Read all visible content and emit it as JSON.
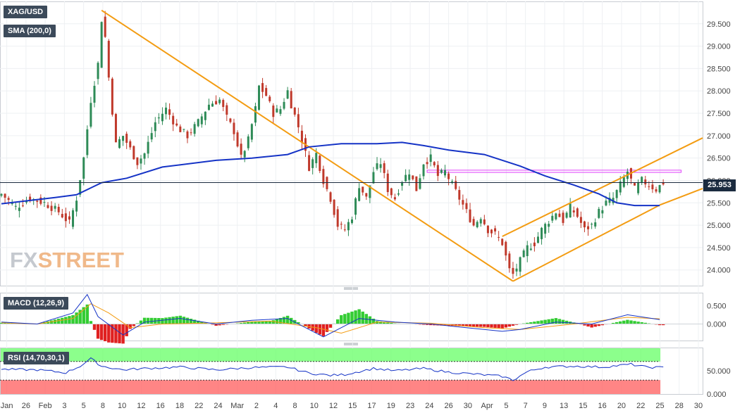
{
  "labels": {
    "symbol": "XAG/USD",
    "sma": "SMA (200,0)",
    "macd": "MACD (12,26,9)",
    "rsi": "RSI (14,70,30,1)",
    "last_price": "25.953"
  },
  "watermark": {
    "part1": "FX",
    "part2": "STREET"
  },
  "colors": {
    "up": "#2e8b57",
    "down": "#c0392b",
    "sma": "#1533c6",
    "trendline": "#f39c12",
    "resistance_zone": "#e040fb",
    "macd_line": "#1533c6",
    "signal_line": "#f39c12",
    "hist_pos": "#33cc33",
    "hist_neg": "#e02020",
    "rsi_overbought": "#66ff66",
    "rsi_oversold": "#ff6666",
    "price_box": "#1b2b3f"
  },
  "chart_data": {
    "type": "candlestick",
    "instrument": "XAG/USD",
    "price_axis": {
      "min": 23.65,
      "max": 30.0,
      "ticks": [
        "24.000",
        "24.500",
        "25.000",
        "25.500",
        "26.000",
        "26.500",
        "27.000",
        "27.500",
        "28.000",
        "28.500",
        "29.000",
        "29.500"
      ]
    },
    "x_ticks": [
      "Jan",
      "26",
      "Feb",
      "3",
      "5",
      "8",
      "10",
      "12",
      "16",
      "18",
      "22",
      "24",
      "Mar",
      "2",
      "4",
      "8",
      "10",
      "12",
      "15",
      "17",
      "19",
      "23",
      "24",
      "26",
      "30",
      "Apr",
      "5",
      "7",
      "9",
      "13",
      "15",
      "16",
      "20",
      "22",
      "25",
      "28",
      "30"
    ],
    "last_price": 25.953,
    "close_path": [
      [
        0,
        25.7
      ],
      [
        4,
        25.4
      ],
      [
        8,
        25.6
      ],
      [
        12,
        25.5
      ],
      [
        16,
        25.3
      ],
      [
        19,
        25.05
      ],
      [
        21,
        25.6
      ],
      [
        23,
        26.5
      ],
      [
        25,
        27.8
      ],
      [
        27,
        28.6
      ],
      [
        28,
        29.6
      ],
      [
        29,
        29.2
      ],
      [
        30,
        28.3
      ],
      [
        32,
        26.8
      ],
      [
        34,
        27.0
      ],
      [
        36,
        26.7
      ],
      [
        38,
        26.4
      ],
      [
        40,
        26.6
      ],
      [
        43,
        27.3
      ],
      [
        46,
        27.6
      ],
      [
        49,
        27.2
      ],
      [
        52,
        27.0
      ],
      [
        55,
        27.3
      ],
      [
        58,
        27.7
      ],
      [
        61,
        27.8
      ],
      [
        63,
        27.4
      ],
      [
        65,
        27.1
      ],
      [
        67,
        26.5
      ],
      [
        69,
        26.9
      ],
      [
        71,
        27.6
      ],
      [
        72,
        28.1
      ],
      [
        74,
        27.9
      ],
      [
        76,
        27.5
      ],
      [
        78,
        27.6
      ],
      [
        80,
        28.0
      ],
      [
        81,
        27.7
      ],
      [
        83,
        27.2
      ],
      [
        84,
        26.9
      ],
      [
        86,
        26.3
      ],
      [
        88,
        26.6
      ],
      [
        90,
        26.0
      ],
      [
        92,
        25.6
      ],
      [
        94,
        25.0
      ],
      [
        96,
        24.9
      ],
      [
        98,
        25.2
      ],
      [
        100,
        25.9
      ],
      [
        102,
        25.6
      ],
      [
        104,
        26.2
      ],
      [
        106,
        26.4
      ],
      [
        108,
        25.8
      ],
      [
        110,
        25.6
      ],
      [
        112,
        26.0
      ],
      [
        114,
        26.2
      ],
      [
        116,
        25.8
      ],
      [
        118,
        26.4
      ],
      [
        120,
        26.5
      ],
      [
        122,
        26.1
      ],
      [
        124,
        26.2
      ],
      [
        126,
        25.9
      ],
      [
        128,
        25.6
      ],
      [
        130,
        25.3
      ],
      [
        132,
        25.0
      ],
      [
        134,
        25.2
      ],
      [
        136,
        24.9
      ],
      [
        138,
        24.8
      ],
      [
        140,
        24.6
      ],
      [
        142,
        24.0
      ],
      [
        143,
        23.9
      ],
      [
        145,
        24.2
      ],
      [
        147,
        24.5
      ],
      [
        149,
        24.6
      ],
      [
        151,
        24.9
      ],
      [
        153,
        25.1
      ],
      [
        155,
        25.3
      ],
      [
        157,
        25.1
      ],
      [
        159,
        25.4
      ],
      [
        161,
        25.2
      ],
      [
        163,
        24.9
      ],
      [
        165,
        25.0
      ],
      [
        167,
        25.3
      ],
      [
        169,
        25.5
      ],
      [
        171,
        25.6
      ],
      [
        173,
        25.9
      ],
      [
        175,
        26.2
      ],
      [
        177,
        25.8
      ],
      [
        179,
        26.0
      ],
      [
        181,
        25.9
      ],
      [
        183,
        25.8
      ],
      [
        185,
        25.953
      ]
    ],
    "sma_200": [
      [
        0,
        25.48
      ],
      [
        15,
        25.62
      ],
      [
        21,
        25.68
      ],
      [
        28,
        25.95
      ],
      [
        35,
        26.05
      ],
      [
        45,
        26.3
      ],
      [
        60,
        26.45
      ],
      [
        70,
        26.5
      ],
      [
        80,
        26.58
      ],
      [
        86,
        26.75
      ],
      [
        95,
        26.82
      ],
      [
        105,
        26.82
      ],
      [
        112,
        26.85
      ],
      [
        118,
        26.78
      ],
      [
        125,
        26.68
      ],
      [
        135,
        26.58
      ],
      [
        145,
        26.32
      ],
      [
        152,
        26.1
      ],
      [
        160,
        25.9
      ],
      [
        167,
        25.7
      ],
      [
        172,
        25.5
      ],
      [
        177,
        25.44
      ],
      [
        184,
        25.44
      ]
    ],
    "trendlines": [
      {
        "from": [
          28,
          29.8
        ],
        "to": [
          143,
          23.75
        ]
      },
      {
        "from": [
          143,
          23.75
        ],
        "to": [
          184,
          25.45
        ]
      },
      {
        "from": [
          184,
          25.45
        ],
        "to": [
          196,
          25.82
        ]
      },
      {
        "from": [
          140,
          24.75
        ],
        "to": [
          196,
          26.95
        ]
      }
    ],
    "resistance_zone": {
      "x_start": 119,
      "x_end": 190,
      "y_low": 26.18,
      "y_high": 26.23
    },
    "macd": {
      "axis": {
        "min": -0.45,
        "max": 0.85,
        "ticks": [
          "0.500",
          "0.000"
        ]
      },
      "macd_line": [
        [
          0,
          0.05
        ],
        [
          10,
          0.0
        ],
        [
          20,
          0.3
        ],
        [
          24,
          0.8
        ],
        [
          27,
          0.2
        ],
        [
          34,
          -0.3
        ],
        [
          40,
          0.05
        ],
        [
          50,
          0.15
        ],
        [
          60,
          0.0
        ],
        [
          70,
          0.1
        ],
        [
          80,
          0.15
        ],
        [
          90,
          -0.35
        ],
        [
          100,
          0.15
        ],
        [
          110,
          0.05
        ],
        [
          120,
          0.0
        ],
        [
          130,
          -0.1
        ],
        [
          140,
          -0.2
        ],
        [
          145,
          -0.15
        ],
        [
          155,
          0.05
        ],
        [
          165,
          0.0
        ],
        [
          175,
          0.25
        ],
        [
          184,
          0.12
        ]
      ],
      "signal_line": [
        [
          0,
          0.03
        ],
        [
          10,
          0.0
        ],
        [
          20,
          0.15
        ],
        [
          25,
          0.55
        ],
        [
          30,
          0.3
        ],
        [
          36,
          -0.1
        ],
        [
          45,
          0.0
        ],
        [
          60,
          0.03
        ],
        [
          75,
          0.08
        ],
        [
          88,
          -0.1
        ],
        [
          95,
          -0.25
        ],
        [
          105,
          0.05
        ],
        [
          120,
          0.02
        ],
        [
          135,
          -0.1
        ],
        [
          145,
          -0.15
        ],
        [
          160,
          0.0
        ],
        [
          175,
          0.18
        ],
        [
          184,
          0.14
        ]
      ]
    },
    "rsi": {
      "axis": {
        "min": 0,
        "max": 100,
        "ticks": [
          "50.000",
          "0.000"
        ]
      },
      "overbought": 70,
      "oversold": 30,
      "values": [
        [
          0,
          53
        ],
        [
          10,
          52
        ],
        [
          18,
          46
        ],
        [
          22,
          60
        ],
        [
          25,
          76
        ],
        [
          28,
          60
        ],
        [
          34,
          52
        ],
        [
          40,
          55
        ],
        [
          50,
          58
        ],
        [
          60,
          52
        ],
        [
          70,
          57
        ],
        [
          80,
          58
        ],
        [
          86,
          45
        ],
        [
          92,
          40
        ],
        [
          96,
          42
        ],
        [
          104,
          55
        ],
        [
          110,
          50
        ],
        [
          118,
          55
        ],
        [
          125,
          47
        ],
        [
          132,
          43
        ],
        [
          140,
          38
        ],
        [
          143,
          30
        ],
        [
          147,
          48
        ],
        [
          152,
          58
        ],
        [
          160,
          60
        ],
        [
          168,
          58
        ],
        [
          176,
          64
        ],
        [
          180,
          58
        ],
        [
          184,
          57
        ]
      ]
    }
  }
}
